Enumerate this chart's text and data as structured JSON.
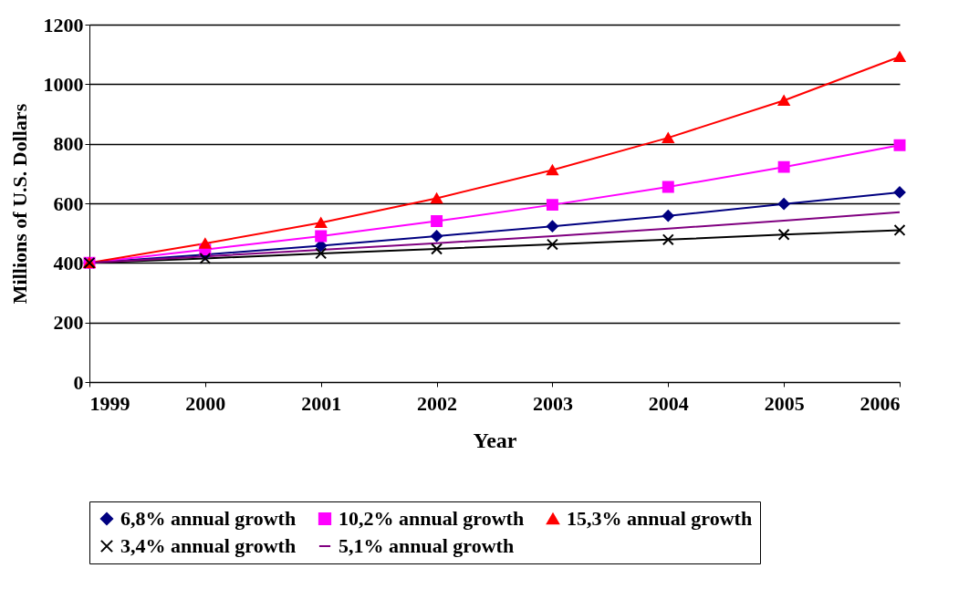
{
  "chart_data": {
    "type": "line",
    "xlabel": "Year",
    "ylabel": "Millions of U.S. Dollars",
    "x": [
      1999,
      2000,
      2001,
      2002,
      2003,
      2004,
      2005,
      2006
    ],
    "xlim": [
      1999,
      2006
    ],
    "xticks": [
      1999,
      2000,
      2001,
      2002,
      2003,
      2004,
      2005,
      2006
    ],
    "ylim": [
      0,
      1200
    ],
    "yticks": [
      0,
      200,
      400,
      600,
      800,
      1000,
      1200
    ],
    "grid": "y",
    "legend": "bottom",
    "series": [
      {
        "name": "6,8% annual growth",
        "color": "#000080",
        "marker": "diamond",
        "values": [
          400,
          428,
          458,
          490,
          523,
          558,
          598,
          637
        ]
      },
      {
        "name": "10,2% annual growth",
        "color": "#ff00ff",
        "marker": "square",
        "values": [
          400,
          445,
          490,
          540,
          595,
          655,
          722,
          795
        ]
      },
      {
        "name": "15,3% annual growth",
        "color": "#ff0000",
        "marker": "triangle",
        "values": [
          400,
          465,
          535,
          617,
          712,
          820,
          945,
          1092
        ]
      },
      {
        "name": "3,4% annual growth",
        "color": "#000000",
        "marker": "cross",
        "values": [
          400,
          415,
          432,
          447,
          462,
          478,
          495,
          510
        ]
      },
      {
        "name": "5,1% annual growth",
        "color": "#800080",
        "marker": "none",
        "values": [
          400,
          422,
          444,
          466,
          490,
          515,
          542,
          570
        ]
      }
    ]
  }
}
